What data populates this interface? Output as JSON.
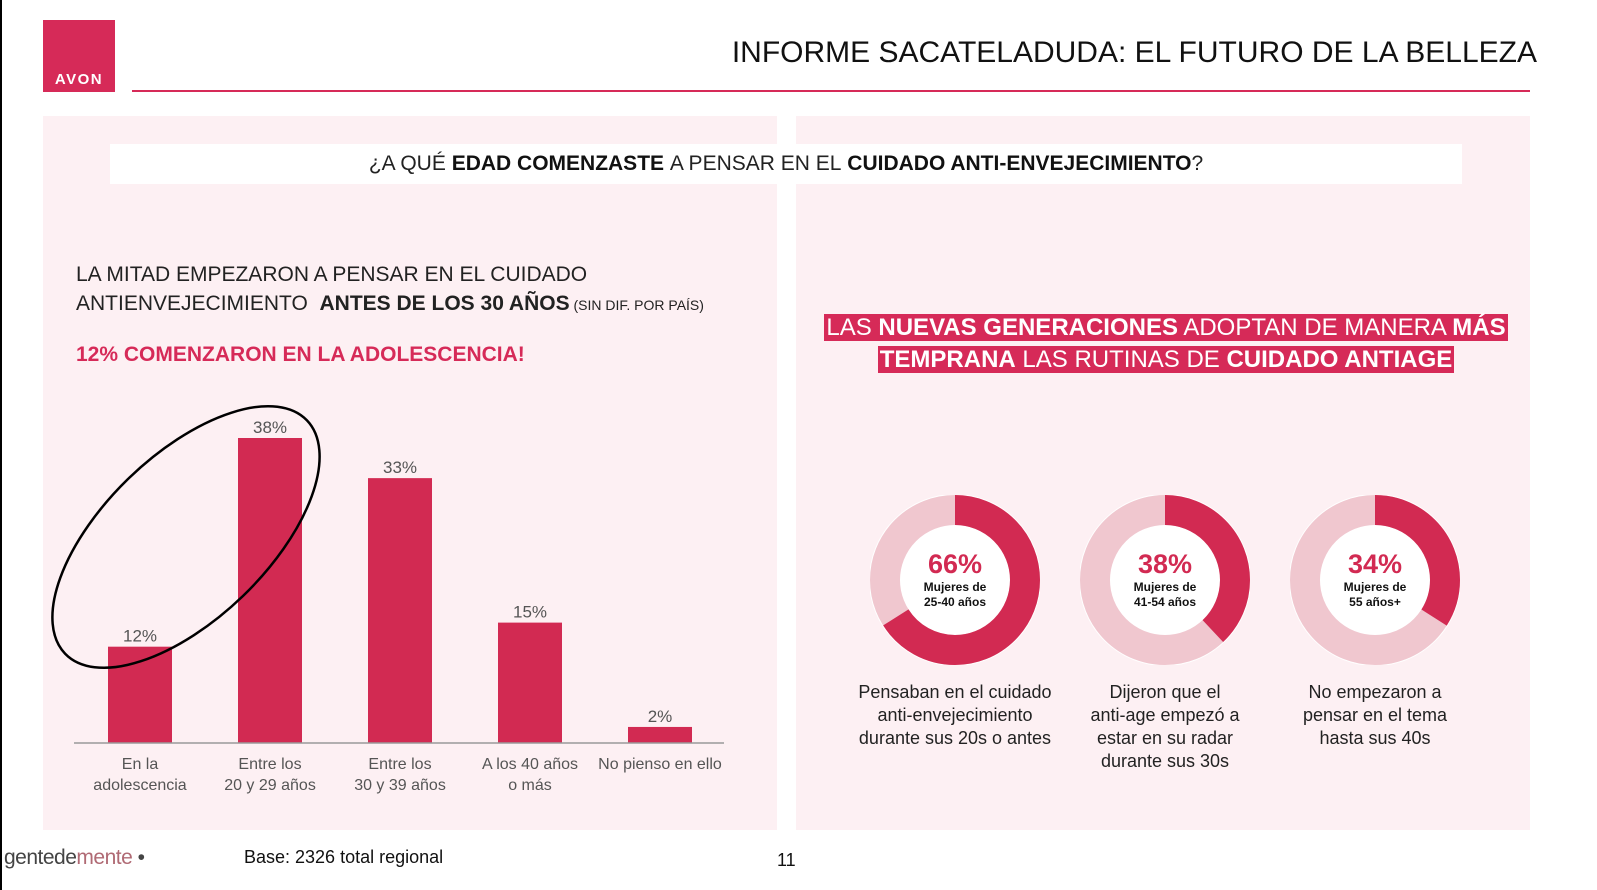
{
  "header": {
    "logo_text": "AVON",
    "title": "INFORME SACATELADUDA: EL FUTURO DE LA BELLEZA"
  },
  "question": {
    "prefix": "¿A QUÉ ",
    "bold1": "EDAD COMENZASTE",
    "middle": " A PENSAR EN EL ",
    "bold2": "CUIDADO ANTI-ENVEJECIMIENTO",
    "suffix": "?"
  },
  "left_panel": {
    "lead_line1": "LA MITAD EMPEZARON A PENSAR EN EL CUIDADO",
    "lead_line2_plain": "ANTIENVEJECIMIENTO ",
    "lead_line2_bold": "ANTES DE LOS 30 AÑOS",
    "lead_line2_small": " (SIN DIF. POR PAÍS)",
    "highlight": "12% COMENZARON EN LA ADOLESCENCIA!"
  },
  "right_panel": {
    "headline_parts": [
      {
        "text": "LAS ",
        "bold": false
      },
      {
        "text": "NUEVAS GENERACIONES",
        "bold": true
      },
      {
        "text": " ADOPTAN DE MANERA ",
        "bold": false
      },
      {
        "text": "MÁS TEMPRANA",
        "bold": true
      },
      {
        "text": " LAS RUTINAS DE ",
        "bold": false
      },
      {
        "text": "CUIDADO ANTIAGE",
        "bold": true
      }
    ],
    "donuts": [
      {
        "pct": "66%",
        "value": 66,
        "label_line1": "Mujeres de",
        "label_line2": "25-40 años",
        "caption": [
          "Pensaban en el cuidado",
          "anti-envejecimiento",
          "durante sus 20s o antes"
        ]
      },
      {
        "pct": "38%",
        "value": 38,
        "label_line1": "Mujeres de",
        "label_line2": "41-54 años",
        "caption": [
          "Dijeron que el",
          "anti-age empezó a",
          "estar en su radar",
          "durante sus 30s"
        ]
      },
      {
        "pct": "34%",
        "value": 34,
        "label_line1": "Mujeres de",
        "label_line2": "55 años+",
        "caption": [
          "No empezaron a",
          "pensar en el tema",
          "hasta sus 40s"
        ]
      }
    ]
  },
  "chart_data": {
    "type": "bar",
    "categories": [
      [
        "En la",
        "adolescencia"
      ],
      [
        "Entre los",
        "20 y 29 años"
      ],
      [
        "Entre los",
        "30 y 39 años"
      ],
      [
        "A los 40 años",
        "o más"
      ],
      [
        "No pienso en ello"
      ]
    ],
    "values": [
      12,
      38,
      33,
      15,
      2
    ],
    "value_labels": [
      "12%",
      "38%",
      "33%",
      "15%",
      "2%"
    ],
    "ylim": [
      0,
      38
    ],
    "grid": false,
    "bar_color": "#d22a52",
    "annotation": "ellipse around first two bars"
  },
  "colors": {
    "brand": "#d62a58",
    "donut_dark": "#d22a52",
    "donut_light": "#f0c7cf",
    "panel_bg": "#fdf0f3"
  },
  "footer": {
    "brand_a": "gentede",
    "brand_b": "mente",
    "brand_dot": " •",
    "base": "Base: 2326 total regional",
    "page": "11"
  }
}
